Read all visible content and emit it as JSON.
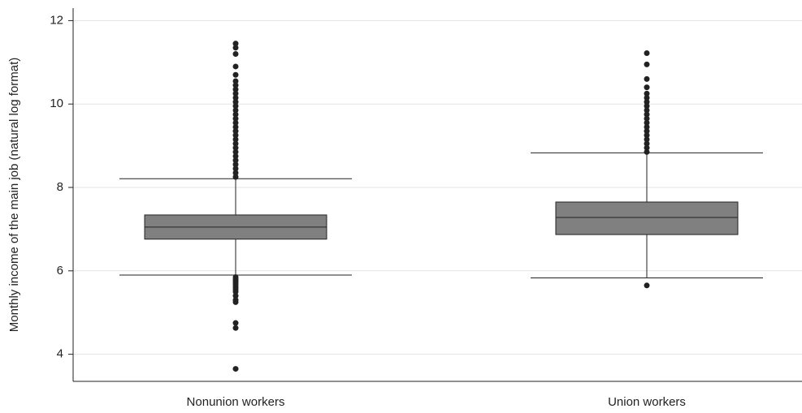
{
  "chart_data": {
    "type": "box",
    "ylabel": "Monthly income of the main job (natural log format)",
    "categories": [
      "Nonunion workers",
      "Union workers"
    ],
    "ylim": [
      3.35,
      12.3
    ],
    "yticks": [
      4,
      6,
      8,
      10,
      12
    ],
    "grid": true,
    "box_color": "#808080",
    "line_color": "#222222",
    "boxes": [
      {
        "whislo": 5.9,
        "q1": 6.76,
        "med": 7.05,
        "q3": 7.34,
        "whishi": 8.21,
        "fliers": [
          8.25,
          8.35,
          8.45,
          8.55,
          8.65,
          8.75,
          8.85,
          8.95,
          9.05,
          9.15,
          9.25,
          9.35,
          9.45,
          9.55,
          9.65,
          9.75,
          9.85,
          9.95,
          10.05,
          10.15,
          10.25,
          10.35,
          10.45,
          10.55,
          10.7,
          10.9,
          11.2,
          11.35,
          11.45,
          5.85,
          5.8,
          5.75,
          5.7,
          5.65,
          5.6,
          5.55,
          5.5,
          5.4,
          5.3,
          5.25,
          4.75,
          4.63,
          3.65
        ]
      },
      {
        "whislo": 5.83,
        "q1": 6.87,
        "med": 7.28,
        "q3": 7.65,
        "whishi": 8.83,
        "fliers": [
          8.85,
          8.95,
          9.05,
          9.15,
          9.25,
          9.35,
          9.45,
          9.55,
          9.65,
          9.75,
          9.85,
          9.95,
          10.05,
          10.15,
          10.25,
          10.4,
          10.6,
          10.95,
          11.22,
          5.65
        ]
      }
    ]
  }
}
